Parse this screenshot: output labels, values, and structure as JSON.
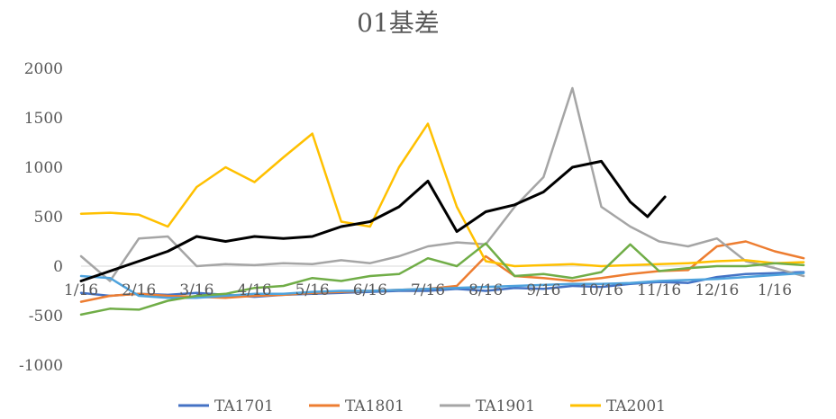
{
  "chart_data": {
    "type": "line",
    "title": "01基差",
    "xlabel": "",
    "ylabel": "",
    "x_ticks": [
      "1/16",
      "2/16",
      "3/16",
      "4/16",
      "5/16",
      "6/16",
      "7/16",
      "8/16",
      "9/16",
      "10/16",
      "11/16",
      "12/16",
      "1/16"
    ],
    "y_ticks": [
      -1000,
      -500,
      0,
      500,
      1000,
      1500,
      2000
    ],
    "ylim": [
      -1000,
      2000
    ],
    "grid": false,
    "legend_position": "bottom",
    "series": [
      {
        "name": "TA1701",
        "color": "#4472C4",
        "x": [
          0,
          0.5,
          1,
          1.5,
          2,
          2.5,
          3,
          3.5,
          4,
          4.5,
          5,
          5.5,
          6,
          6.5,
          7,
          7.5,
          8,
          8.5,
          9,
          9.5,
          10,
          10.5,
          11,
          11.5,
          12,
          12.5
        ],
        "y": [
          -270,
          -300,
          -280,
          -290,
          -270,
          -290,
          -310,
          -290,
          -280,
          -270,
          -260,
          -250,
          -250,
          -230,
          -250,
          -220,
          -230,
          -200,
          -210,
          -180,
          -160,
          -170,
          -110,
          -80,
          -70,
          -60
        ]
      },
      {
        "name": "TA1801",
        "color": "#ED7D31",
        "x": [
          0,
          0.5,
          1,
          1.5,
          2,
          2.5,
          3,
          3.5,
          4,
          4.5,
          5,
          5.5,
          6,
          6.5,
          7,
          7.5,
          8,
          8.5,
          9,
          9.5,
          10,
          10.5,
          11,
          11.5,
          12,
          12.5
        ],
        "y": [
          -360,
          -300,
          -280,
          -300,
          -310,
          -320,
          -300,
          -290,
          -270,
          -260,
          -250,
          -240,
          -230,
          -200,
          100,
          -100,
          -120,
          -150,
          -120,
          -80,
          -50,
          -40,
          200,
          250,
          150,
          80
        ]
      },
      {
        "name": "TA1901",
        "color": "#A5A5A5",
        "x": [
          0,
          0.5,
          1,
          1.5,
          2,
          2.5,
          3,
          3.5,
          4,
          4.5,
          5,
          5.5,
          6,
          6.5,
          7,
          7.5,
          8,
          8.5,
          9,
          9.5,
          10,
          10.5,
          11,
          11.5,
          12,
          12.5
        ],
        "y": [
          100,
          -150,
          280,
          300,
          0,
          20,
          10,
          30,
          20,
          60,
          30,
          100,
          200,
          240,
          220,
          600,
          900,
          1800,
          600,
          400,
          250,
          200,
          280,
          50,
          -20,
          -100
        ]
      },
      {
        "name": "TA2001",
        "color": "#FFC000",
        "x": [
          0,
          0.5,
          1,
          1.5,
          2,
          2.5,
          3,
          3.5,
          4,
          4.5,
          5,
          5.5,
          6,
          6.5,
          7,
          7.5,
          8,
          8.5,
          9,
          9.5,
          10,
          10.5,
          11,
          11.5,
          12,
          12.5
        ],
        "y": [
          530,
          540,
          520,
          400,
          800,
          1000,
          850,
          1100,
          1340,
          450,
          400,
          1000,
          1440,
          600,
          50,
          0,
          10,
          20,
          0,
          10,
          20,
          30,
          50,
          60,
          30,
          40
        ]
      },
      {
        "name": "",
        "color": "#4FA3DD",
        "x": [
          0,
          0.5,
          1,
          1.5,
          2,
          2.5,
          3,
          3.5,
          4,
          4.5,
          5,
          5.5,
          6,
          6.5,
          7,
          7.5,
          8,
          8.5,
          9,
          9.5,
          10,
          10.5,
          11,
          11.5,
          12,
          12.5
        ],
        "y": [
          -100,
          -120,
          -300,
          -320,
          -320,
          -300,
          -280,
          -280,
          -260,
          -250,
          -250,
          -240,
          -230,
          -220,
          -210,
          -200,
          -190,
          -180,
          -180,
          -170,
          -150,
          -140,
          -130,
          -110,
          -90,
          -70
        ]
      },
      {
        "name": "",
        "color": "#70AD47",
        "x": [
          0,
          0.5,
          1,
          1.5,
          2,
          2.5,
          3,
          3.5,
          4,
          4.5,
          5,
          5.5,
          6,
          6.5,
          7,
          7.5,
          8,
          8.5,
          9,
          9.5,
          10,
          10.5,
          11,
          11.5,
          12,
          12.5
        ],
        "y": [
          -490,
          -430,
          -440,
          -350,
          -300,
          -280,
          -220,
          -200,
          -120,
          -150,
          -100,
          -80,
          80,
          0,
          230,
          -100,
          -80,
          -120,
          -60,
          220,
          -50,
          -20,
          0,
          0,
          30,
          10
        ]
      },
      {
        "name": "",
        "color": "#000000",
        "x": [
          0,
          0.5,
          1,
          1.5,
          2,
          2.5,
          3,
          3.5,
          4,
          4.5,
          5,
          5.5,
          6,
          6.5,
          7,
          7.5,
          8,
          8.5,
          9,
          9.5,
          9.8,
          10.1
        ],
        "y": [
          -150,
          -50,
          50,
          150,
          300,
          250,
          300,
          280,
          300,
          400,
          450,
          600,
          860,
          350,
          550,
          620,
          750,
          1000,
          1060,
          650,
          500,
          700
        ]
      }
    ]
  }
}
